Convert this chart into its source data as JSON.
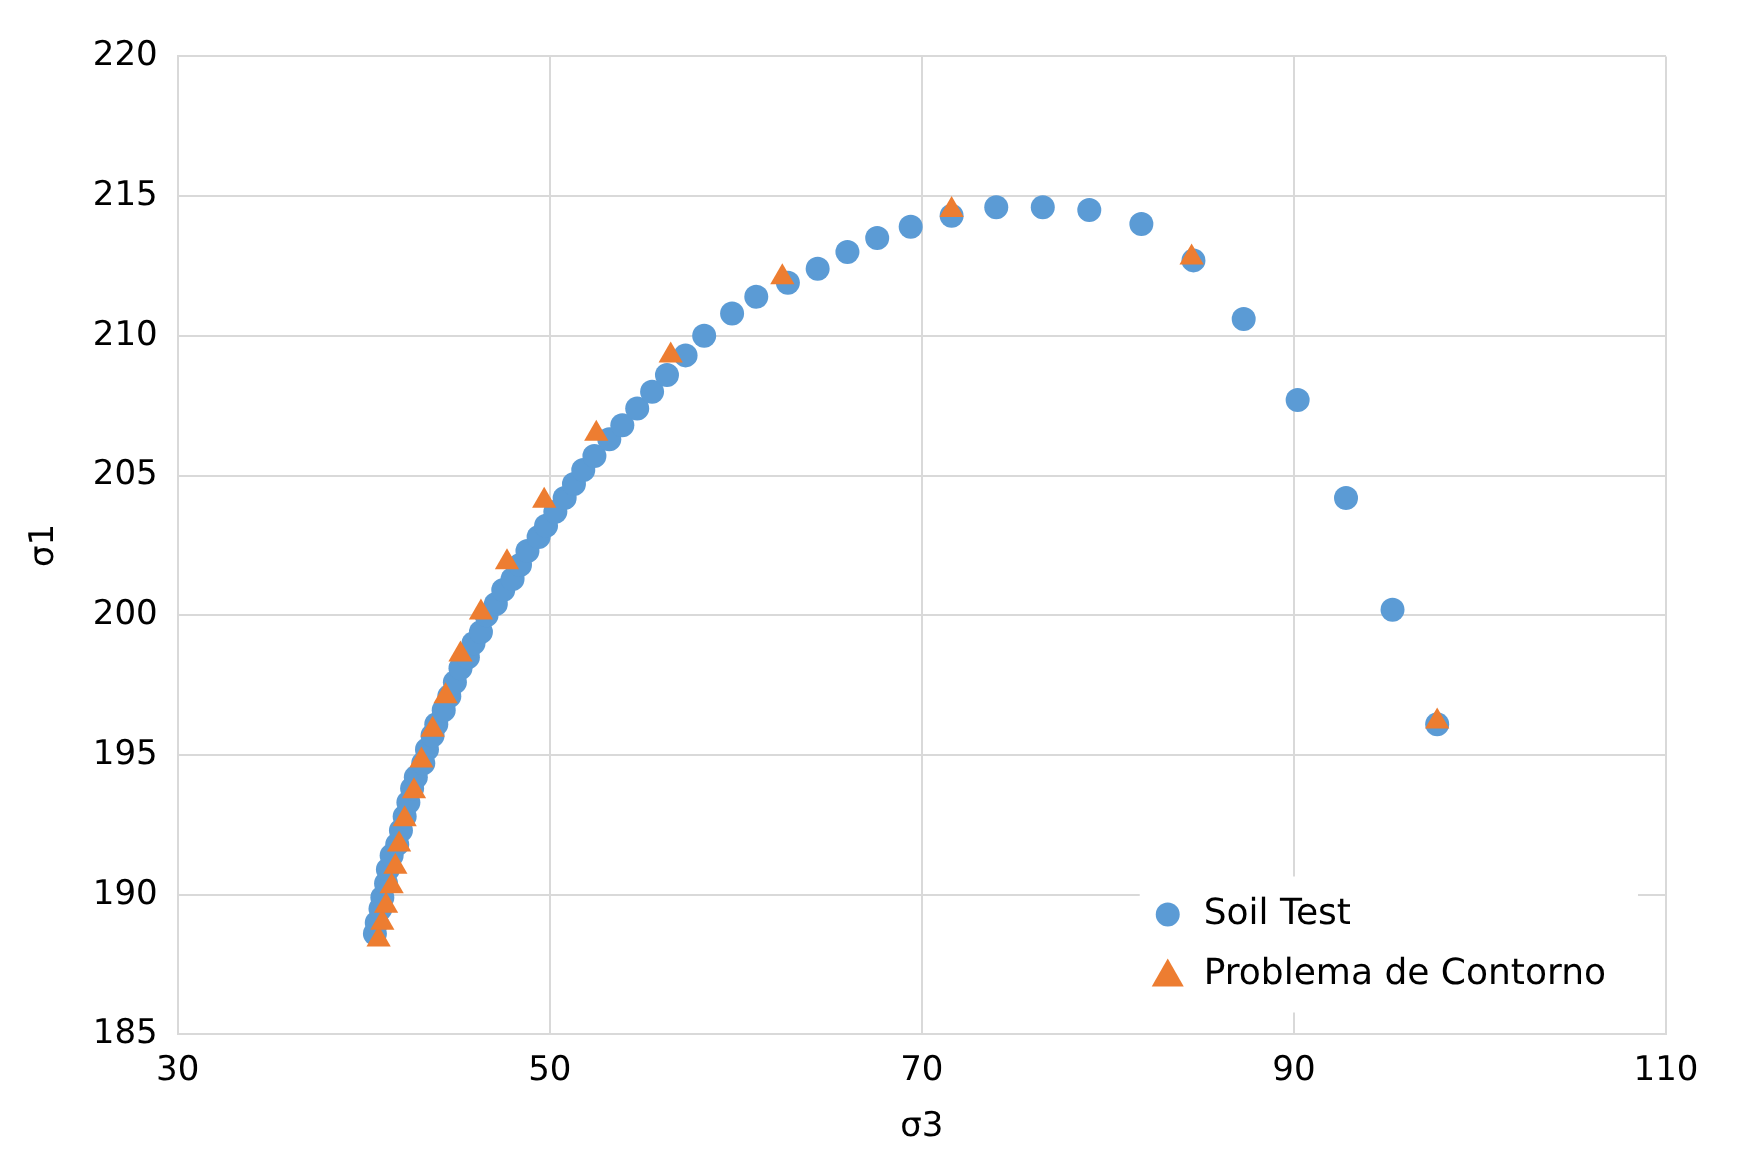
{
  "chart_data": {
    "type": "scatter",
    "xlabel": "σ3",
    "ylabel": "σ1",
    "xlim": [
      30,
      110
    ],
    "xticks": [
      30,
      50,
      70,
      90,
      110
    ],
    "ylim": [
      185,
      220
    ],
    "yticks": [
      185,
      190,
      195,
      200,
      205,
      210,
      215,
      220
    ],
    "grid": true,
    "legend": "bottom right",
    "series": [
      {
        "name": "Soil Test",
        "color": "#5b9bd5",
        "marker": "circle",
        "x": [
          40.6,
          40.7,
          40.9,
          41.0,
          41.2,
          41.3,
          41.5,
          41.8,
          42.0,
          42.2,
          42.4,
          42.6,
          42.8,
          43.2,
          43.4,
          43.7,
          43.9,
          44.3,
          44.6,
          44.9,
          45.2,
          45.6,
          45.9,
          46.3,
          46.6,
          47.1,
          47.5,
          48.0,
          48.4,
          48.8,
          49.4,
          49.8,
          50.3,
          50.8,
          51.3,
          51.8,
          52.4,
          53.2,
          53.9,
          54.7,
          55.5,
          56.3,
          57.3,
          58.3,
          59.8,
          61.1,
          62.8,
          64.4,
          66.0,
          67.6,
          69.4,
          71.6,
          74.0,
          76.5,
          79.0,
          81.8,
          84.6,
          87.3,
          90.2,
          92.8,
          95.3,
          97.7
        ],
        "values": [
          188.6,
          189.0,
          189.5,
          189.9,
          190.4,
          190.9,
          191.4,
          191.8,
          192.3,
          192.8,
          193.3,
          193.8,
          194.2,
          194.7,
          195.2,
          195.7,
          196.1,
          196.6,
          197.1,
          197.6,
          198.1,
          198.5,
          199.0,
          199.4,
          200.0,
          200.4,
          200.9,
          201.3,
          201.8,
          202.3,
          202.8,
          203.2,
          203.7,
          204.2,
          204.7,
          205.2,
          205.7,
          206.3,
          206.8,
          207.4,
          208.0,
          208.6,
          209.3,
          210.0,
          210.8,
          211.4,
          211.9,
          212.4,
          213.0,
          213.5,
          213.9,
          214.3,
          214.6,
          214.6,
          214.5,
          214.0,
          212.7,
          210.6,
          207.7,
          204.2,
          200.2,
          196.1
        ]
      },
      {
        "name": "Problema de Contorno",
        "color": "#ed7d31",
        "marker": "triangle",
        "x": [
          40.8,
          41.0,
          41.2,
          41.5,
          41.7,
          41.9,
          42.2,
          42.7,
          43.1,
          43.7,
          44.4,
          45.2,
          46.3,
          47.7,
          49.7,
          52.5,
          56.5,
          62.5,
          71.6,
          84.5,
          97.7
        ],
        "values": [
          188.4,
          189.0,
          189.6,
          190.3,
          191.0,
          191.8,
          192.7,
          193.7,
          194.8,
          195.9,
          197.1,
          198.6,
          200.1,
          201.9,
          204.1,
          206.5,
          209.3,
          212.1,
          214.5,
          212.8,
          196.2
        ]
      }
    ]
  }
}
